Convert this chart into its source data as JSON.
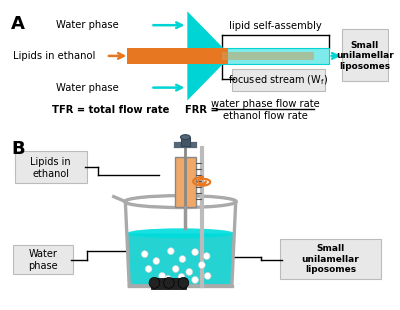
{
  "bg_color": "#ffffff",
  "cyan_color": "#00d4d4",
  "orange_color": "#e87722",
  "light_cyan": "#7eeaea",
  "label_A": "A",
  "label_B": "B",
  "water_phase": "Water phase",
  "lipids_ethanol": "Lipids in ethanol",
  "lipid_self_assembly": "lipid self-assembly",
  "focused_stream": "focused stream (W",
  "focused_stream_sub": "f",
  "small_uni": "Small\nunilamellar\nliposomes",
  "tfr_text": "TFR = total flow rate",
  "frr_text": "FRR =",
  "frr_num": "water phase flow rate",
  "frr_den": "ethanol flow rate",
  "lipids_ethanol_b": "Lipids in\nethanol",
  "water_phase_b": "Water\nphase",
  "small_uni_b": "Small\nunilamellar\nliposomes"
}
